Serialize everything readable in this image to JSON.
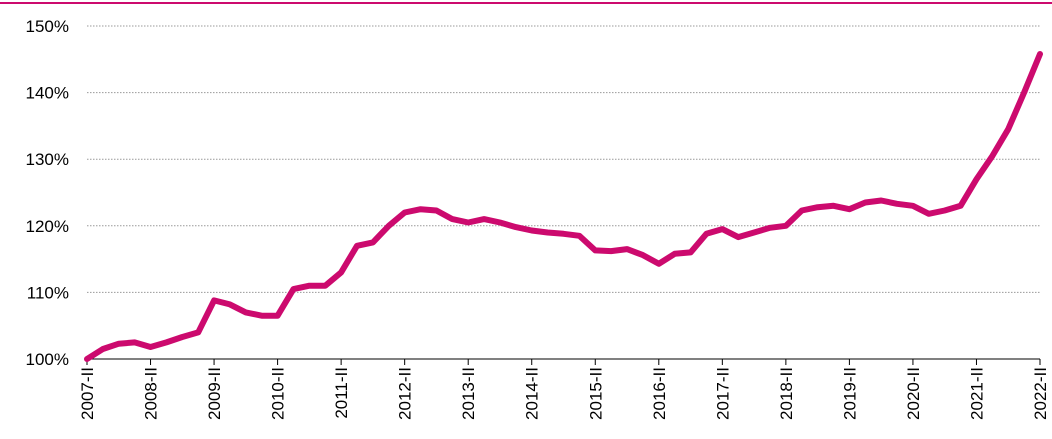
{
  "chart_data": {
    "type": "line",
    "categories": [
      "2007-II",
      null,
      null,
      null,
      "2008-II",
      null,
      null,
      null,
      "2009-II",
      null,
      null,
      null,
      "2010-II",
      null,
      null,
      null,
      "2011-II",
      null,
      null,
      null,
      "2012-II",
      null,
      null,
      null,
      "2013-II",
      null,
      null,
      null,
      "2014-II",
      null,
      null,
      null,
      "2015-II",
      null,
      null,
      null,
      "2016-II",
      null,
      null,
      null,
      "2017-II",
      null,
      null,
      null,
      "2018-II",
      null,
      null,
      null,
      "2019-II",
      null,
      null,
      null,
      "2020-II",
      null,
      null,
      null,
      "2021-II",
      null,
      null,
      null,
      "2022-II"
    ],
    "series": [
      {
        "color": "#cc0a6e",
        "values": [
          100,
          101.5,
          102.3,
          102.5,
          101.8,
          102.5,
          103.3,
          104,
          108.8,
          108.2,
          107,
          106.5,
          106.5,
          110.5,
          111,
          111,
          113,
          117,
          117.5,
          120,
          122,
          122.5,
          122.3,
          121,
          120.5,
          121,
          120.5,
          119.8,
          119.3,
          119,
          118.8,
          118.5,
          116.3,
          116.2,
          116.5,
          115.6,
          114.3,
          115.8,
          116,
          118.8,
          119.5,
          118.3,
          119,
          119.7,
          120,
          122.3,
          122.8,
          123,
          122.5,
          123.5,
          123.8,
          123.3,
          123,
          121.8,
          122.3,
          123,
          127,
          130.5,
          134.5,
          140,
          145.8
        ]
      }
    ],
    "ylim": [
      100,
      150
    ],
    "yticks": [
      {
        "value": 100,
        "label": "100%"
      },
      {
        "value": 110,
        "label": "110%"
      },
      {
        "value": 120,
        "label": "120%"
      },
      {
        "value": 130,
        "label": "130%"
      },
      {
        "value": 140,
        "label": "140%"
      },
      {
        "value": 150,
        "label": "150%"
      }
    ],
    "grid": true
  }
}
